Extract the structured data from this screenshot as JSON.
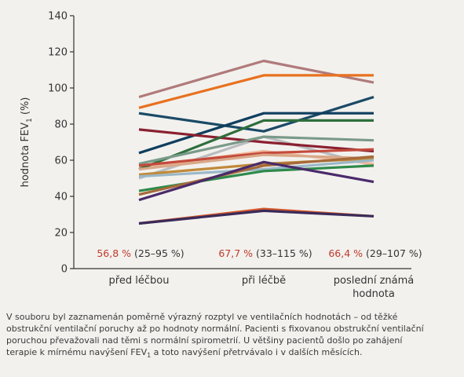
{
  "chart_data": {
    "type": "line",
    "ylabel": "hodnota FEV",
    "ylabel_sub": "1",
    "ylabel_unit": " (%)",
    "ylim": [
      0,
      140
    ],
    "yticks": [
      0,
      20,
      40,
      60,
      80,
      100,
      120,
      140
    ],
    "categories": [
      "před léčbou",
      "při léčbě",
      "poslední známá hodnota"
    ],
    "category_lines": [
      [
        "před léčbou"
      ],
      [
        "při léčbě"
      ],
      [
        "poslední známá",
        "hodnota"
      ]
    ],
    "stats": [
      {
        "value": "56,8 %",
        "range": "(25–95 %)"
      },
      {
        "value": "67,7 %",
        "range": "(33–115 %)"
      },
      {
        "value": "66,4 %",
        "range": "(29–107 %)"
      }
    ],
    "series": [
      {
        "color": "#b9bcbf",
        "values": [
          50,
          73,
          57
        ]
      },
      {
        "color": "#f0b89a",
        "values": [
          56,
          65,
          58
        ]
      },
      {
        "color": "#b07a7a",
        "values": [
          95,
          115,
          103
        ]
      },
      {
        "color": "#e8711f",
        "values": [
          89,
          107,
          107
        ]
      },
      {
        "color": "#1a4a66",
        "values": [
          86,
          76,
          95
        ]
      },
      {
        "color": "#0f3e5e",
        "values": [
          64,
          86,
          86
        ]
      },
      {
        "color": "#8a2030",
        "values": [
          77,
          70,
          65
        ]
      },
      {
        "color": "#2e6e3c",
        "values": [
          55,
          82,
          82
        ]
      },
      {
        "color": "#7a9a8a",
        "values": [
          58,
          73,
          71
        ]
      },
      {
        "color": "#c44a3c",
        "values": [
          57,
          64,
          66
        ]
      },
      {
        "color": "#d9a888",
        "values": [
          55,
          63,
          61
        ]
      },
      {
        "color": "#c08a3a",
        "values": [
          52,
          58,
          61
        ]
      },
      {
        "color": "#9ab8c8",
        "values": [
          51,
          55,
          60
        ]
      },
      {
        "color": "#2e8a4a",
        "values": [
          43,
          54,
          57
        ]
      },
      {
        "color": "#a66a3a",
        "values": [
          41,
          57,
          62
        ]
      },
      {
        "color": "#4a2a6a",
        "values": [
          38,
          59,
          48
        ]
      },
      {
        "color": "#d4582a",
        "values": [
          25,
          33,
          29
        ]
      },
      {
        "color": "#3a2a5a",
        "values": [
          25,
          32,
          29
        ]
      }
    ]
  },
  "caption": {
    "line1": "V souboru byl zaznamenán poměrně výrazný rozptyl ve ventilačních hodnotách – od těžké",
    "line2": "obstrukční ventilační poruchy až po hodnoty normální. Pacienti s fixovanou obstrukční ventilační",
    "line3": "poruchou převažovali nad těmi s normální spirometrií. U většiny pacientů došlo po zahájení",
    "line4_pre": "terapie k mírnému navýšení FEV",
    "line4_sub": "1",
    "line4_post": " a toto navýšení přetrvávalo i v dalších měsících."
  },
  "colors": {
    "stat_value": "#c0392b",
    "axis": "#333333",
    "text": "#333333"
  }
}
